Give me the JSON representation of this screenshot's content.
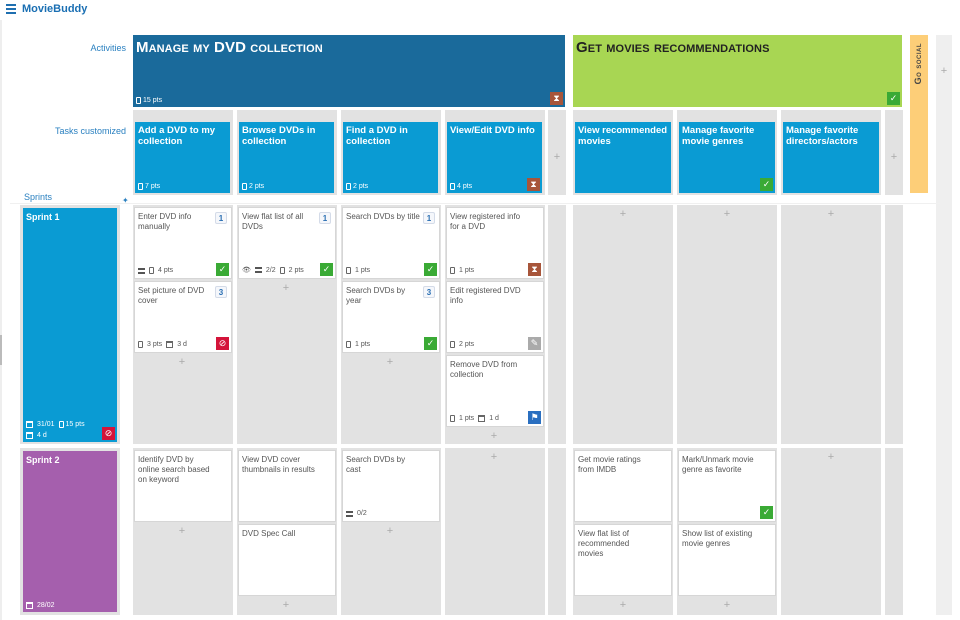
{
  "app": {
    "title": "MovieBuddy"
  },
  "labels": {
    "activities": "Activities",
    "tasks": "Tasks customized",
    "sprints": "Sprints"
  },
  "activities": [
    {
      "title": "Manage my DVD collection",
      "pts": "15 pts",
      "color": "#1a6a9b",
      "status_icon": "hourglass-icon"
    },
    {
      "title": "Get movies recommendations",
      "pts": "",
      "color": "#a8d653",
      "status_icon": "check-icon"
    },
    {
      "title": "Go social",
      "pts": "",
      "color": "#fdce78",
      "status_icon": ""
    }
  ],
  "tasks": [
    {
      "title": "Add a DVD to my collection",
      "pts": "7 pts"
    },
    {
      "title": "Browse DVDs in collection",
      "pts": "2 pts"
    },
    {
      "title": "Find a DVD in collection",
      "pts": "2 pts"
    },
    {
      "title": "View/Edit DVD info",
      "pts": "4 pts"
    },
    {
      "title": "View recommended movies",
      "pts": ""
    },
    {
      "title": "Manage favorite movie genres",
      "pts": ""
    },
    {
      "title": "Manage favorite directors/actors",
      "pts": ""
    }
  ],
  "sprints": [
    {
      "title": "Sprint 1",
      "date": "31/01",
      "pts": "15 pts",
      "duration": "4 d",
      "color": "#0a9bd3"
    },
    {
      "title": "Sprint 2",
      "date": "28/02",
      "color": "#a55fad"
    }
  ],
  "stories": {
    "s1_c1_a": {
      "title": "Enter DVD info manually",
      "num": "1",
      "pts": "4 pts"
    },
    "s1_c1_b": {
      "title": "Set picture of DVD cover",
      "num": "3",
      "pts": "3 pts",
      "days": "3 d"
    },
    "s1_c2_a": {
      "title": "View flat list of all DVDs",
      "num": "1",
      "count": "2/2",
      "pts": "2 pts"
    },
    "s1_c3_a": {
      "title": "Search DVDs by title",
      "num": "1",
      "pts": "1 pts"
    },
    "s1_c3_b": {
      "title": "Search DVDs by year",
      "num": "3",
      "pts": "1 pts"
    },
    "s1_c4_a": {
      "title": "View registered info for a DVD",
      "pts": "1 pts"
    },
    "s1_c4_b": {
      "title": "Edit registered DVD info",
      "pts": "2 pts"
    },
    "s1_c4_c": {
      "title": "Remove DVD from collection",
      "pts": "1 pts",
      "days": "1 d"
    },
    "s2_c1_a": {
      "title": "Identify DVD by online search based on keyword"
    },
    "s2_c2_a": {
      "title": "View DVD cover thumbnails in results"
    },
    "s2_c2_b": {
      "title": "DVD Spec Call"
    },
    "s2_c3_a": {
      "title": "Search DVDs by cast",
      "count": "0/2"
    },
    "s2_c5_a": {
      "title": "Get movie ratings from IMDB"
    },
    "s2_c5_b": {
      "title": "View flat list of recommended movies"
    },
    "s2_c6_a": {
      "title": "Mark/Unmark movie genre as favorite"
    },
    "s2_c6_b": {
      "title": "Show list of existing movie genres"
    }
  },
  "icons": {
    "add": "+",
    "check": "✓",
    "hourglass": "⧗",
    "block": "⊘",
    "edit": "✎",
    "flag": "⚑",
    "pin": "✦"
  }
}
